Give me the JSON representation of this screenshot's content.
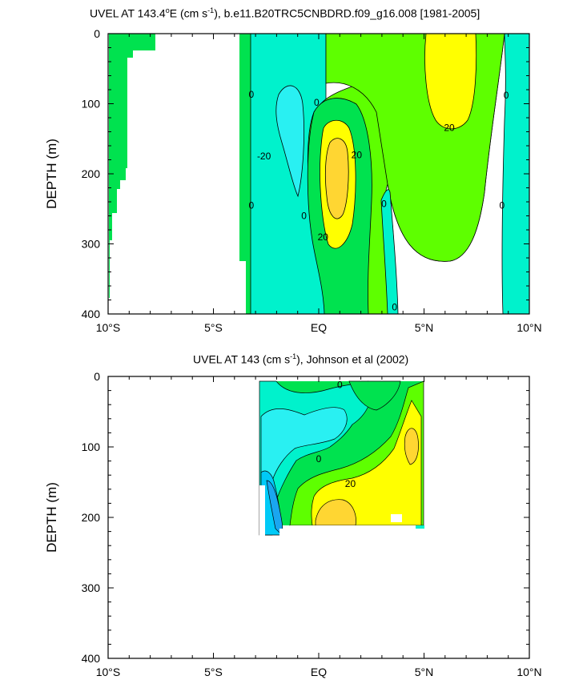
{
  "panels": [
    {
      "title_main": "UVEL AT 143.4",
      "title_deg": "o",
      "title_mid": "E (cm s",
      "title_exp": "-1",
      "title_end": "), b.e11.B20TRC5CNBDRD.f09_g16.008 [1981-2005]"
    },
    {
      "title_main": "UVEL AT 143 (cm s",
      "title_exp": "-1",
      "title_end": "), Johnson et al (2002)"
    }
  ],
  "chart_data": [
    {
      "type": "contour",
      "title": "UVEL AT 143.4°E (cm s-1), b.e11.B20TRC5CNBDRD.f09_g16.008 [1981-2005]",
      "xlabel": "",
      "ylabel": "DEPTH (m)",
      "xlim": [
        -10,
        10
      ],
      "ylim": [
        400,
        0
      ],
      "x_ticks": [
        -10,
        -5,
        0,
        5,
        10
      ],
      "x_tick_labels": [
        "10°S",
        "5°S",
        "EQ",
        "5°N",
        "10°N"
      ],
      "y_ticks": [
        0,
        100,
        200,
        300,
        400
      ],
      "contour_labels": [
        {
          "text": "0",
          "lat": -3.2,
          "depth": 87
        },
        {
          "text": "-20",
          "lat": -2.6,
          "depth": 175
        },
        {
          "text": "0",
          "lat": -3.2,
          "depth": 245
        },
        {
          "text": "0",
          "lat": -0.1,
          "depth": 98
        },
        {
          "text": "20",
          "lat": 1.8,
          "depth": 173
        },
        {
          "text": "0",
          "lat": -0.7,
          "depth": 260
        },
        {
          "text": "20",
          "lat": 0.2,
          "depth": 290
        },
        {
          "text": "0",
          "lat": 3.1,
          "depth": 243
        },
        {
          "text": "0",
          "lat": 3.6,
          "depth": 390
        },
        {
          "text": "20",
          "lat": 6.2,
          "depth": 134
        },
        {
          "text": "0",
          "lat": 8.9,
          "depth": 88
        },
        {
          "text": "0",
          "lat": 8.7,
          "depth": 245
        }
      ]
    },
    {
      "type": "contour",
      "title": "UVEL AT 143 (cm s-1), Johnson et al (2002)",
      "xlabel": "",
      "ylabel": "DEPTH (m)",
      "xlim": [
        -10,
        10
      ],
      "ylim": [
        400,
        0
      ],
      "x_ticks": [
        -10,
        -5,
        0,
        5,
        10
      ],
      "x_tick_labels": [
        "10°S",
        "5°S",
        "EQ",
        "5°N",
        "10°N"
      ],
      "y_ticks": [
        0,
        100,
        200,
        300,
        400
      ],
      "contour_labels": [
        {
          "text": "0",
          "lat": 1.0,
          "depth": 12
        },
        {
          "text": "0",
          "lat": 0.0,
          "depth": 117
        },
        {
          "text": "20",
          "lat": 1.5,
          "depth": 152
        }
      ]
    }
  ],
  "colors": {
    "green": "#00e24f",
    "lime": "#5eff00",
    "cyan": "#00f2cc",
    "light_blue": "#29f0f2",
    "blue": "#00caf7",
    "deep_blue": "#1aa6f0",
    "yellow": "#ffff00",
    "gold": "#ffd632",
    "line": "#000000"
  }
}
